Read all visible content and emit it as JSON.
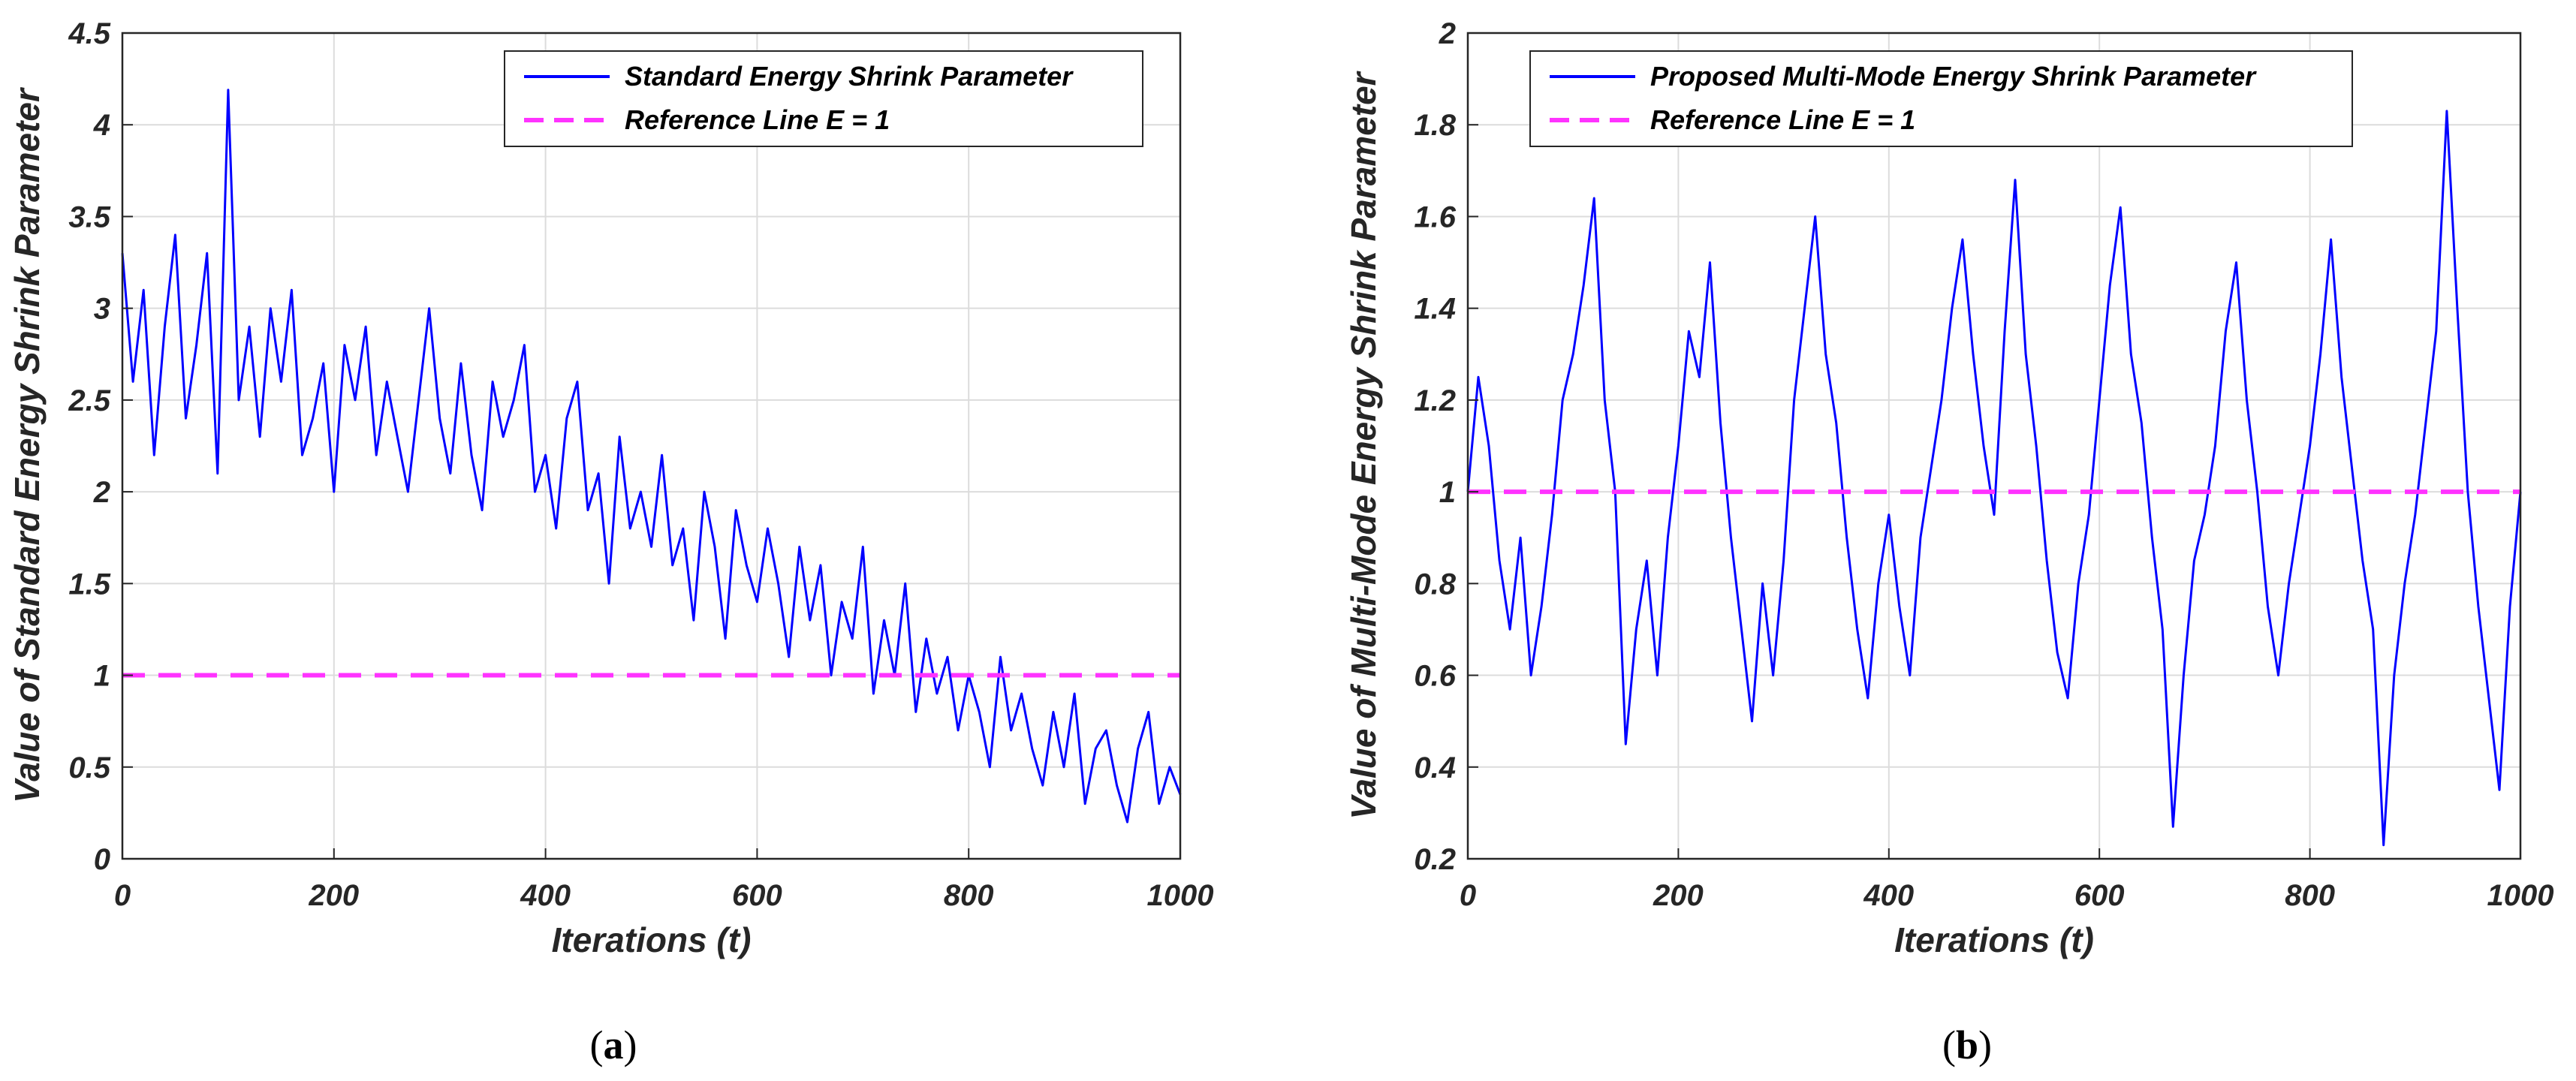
{
  "figure": {
    "colors": {
      "series": "#0000ff",
      "reference": "#ff33ff",
      "grid": "#dcdcdc",
      "axes": "#262626"
    }
  },
  "chart_data": [
    {
      "type": "line",
      "panel_label": "a",
      "caption_open": "(",
      "caption_close": ")",
      "title": "",
      "xlabel": "Iterations (t)",
      "ylabel": "Value of Standard Energy Shrink Parameter",
      "xlim": [
        0,
        1000
      ],
      "ylim": [
        0,
        4.5
      ],
      "xticks": [
        0,
        200,
        400,
        600,
        800,
        1000
      ],
      "xtick_labels": [
        "0",
        "200",
        "400",
        "600",
        "800",
        "1000"
      ],
      "yticks": [
        0,
        0.5,
        1,
        1.5,
        2,
        2.5,
        3,
        3.5,
        4,
        4.5
      ],
      "ytick_labels": [
        "0",
        "0.5",
        "1",
        "1.5",
        "2",
        "2.5",
        "3",
        "3.5",
        "4",
        "4.5"
      ],
      "grid": true,
      "legend_position": "top-right",
      "series": [
        {
          "name": "Standard Energy Shrink Parameter",
          "style": "solid",
          "color": "#0000ff",
          "x_step": 10,
          "values": [
            3.3,
            2.6,
            3.1,
            2.2,
            2.9,
            3.4,
            2.4,
            2.8,
            3.3,
            2.1,
            4.19,
            2.5,
            2.9,
            2.3,
            3.0,
            2.6,
            3.1,
            2.2,
            2.4,
            2.7,
            2.0,
            2.8,
            2.5,
            2.9,
            2.2,
            2.6,
            2.3,
            2.0,
            2.5,
            3.0,
            2.4,
            2.1,
            2.7,
            2.2,
            1.9,
            2.6,
            2.3,
            2.5,
            2.8,
            2.0,
            2.2,
            1.8,
            2.4,
            2.6,
            1.9,
            2.1,
            1.5,
            2.3,
            1.8,
            2.0,
            1.7,
            2.2,
            1.6,
            1.8,
            1.3,
            2.0,
            1.7,
            1.2,
            1.9,
            1.6,
            1.4,
            1.8,
            1.5,
            1.1,
            1.7,
            1.3,
            1.6,
            1.0,
            1.4,
            1.2,
            1.7,
            0.9,
            1.3,
            1.0,
            1.5,
            0.8,
            1.2,
            0.9,
            1.1,
            0.7,
            1.0,
            0.8,
            0.5,
            1.1,
            0.7,
            0.9,
            0.6,
            0.4,
            0.8,
            0.5,
            0.9,
            0.3,
            0.6,
            0.7,
            0.4,
            0.2,
            0.6,
            0.8,
            0.3,
            0.5,
            0.35
          ]
        },
        {
          "name": "Reference Line E = 1",
          "style": "dashed",
          "color": "#ff33ff",
          "x": [
            0,
            1000
          ],
          "values": [
            1,
            1
          ]
        }
      ]
    },
    {
      "type": "line",
      "panel_label": "b",
      "caption_open": "(",
      "caption_close": ")",
      "title": "",
      "xlabel": "Iterations (t)",
      "ylabel": "Value of Multi-Mode Energy Shrink Parameter",
      "xlim": [
        0,
        1000
      ],
      "ylim": [
        0.2,
        2
      ],
      "xticks": [
        0,
        200,
        400,
        600,
        800,
        1000
      ],
      "xtick_labels": [
        "0",
        "200",
        "400",
        "600",
        "800",
        "1000"
      ],
      "yticks": [
        0.2,
        0.4,
        0.6,
        0.8,
        1,
        1.2,
        1.4,
        1.6,
        1.8,
        2
      ],
      "ytick_labels": [
        "0.2",
        "0.4",
        "0.6",
        "0.8",
        "1",
        "1.2",
        "1.4",
        "1.6",
        "1.8",
        "2"
      ],
      "grid": true,
      "legend_position": "top-right",
      "series": [
        {
          "name": "Proposed Multi-Mode Energy Shrink Parameter",
          "style": "solid",
          "color": "#0000ff",
          "x_step": 10,
          "values": [
            1.0,
            1.25,
            1.1,
            0.85,
            0.7,
            0.9,
            0.6,
            0.75,
            0.95,
            1.2,
            1.3,
            1.45,
            1.64,
            1.2,
            1.0,
            0.45,
            0.7,
            0.85,
            0.6,
            0.9,
            1.1,
            1.35,
            1.25,
            1.5,
            1.15,
            0.9,
            0.7,
            0.5,
            0.8,
            0.6,
            0.85,
            1.2,
            1.4,
            1.6,
            1.3,
            1.15,
            0.9,
            0.7,
            0.55,
            0.8,
            0.95,
            0.75,
            0.6,
            0.9,
            1.05,
            1.2,
            1.4,
            1.55,
            1.3,
            1.1,
            0.95,
            1.35,
            1.68,
            1.3,
            1.1,
            0.85,
            0.65,
            0.55,
            0.8,
            0.95,
            1.2,
            1.45,
            1.62,
            1.3,
            1.15,
            0.9,
            0.7,
            0.27,
            0.6,
            0.85,
            0.95,
            1.1,
            1.35,
            1.5,
            1.2,
            1.0,
            0.75,
            0.6,
            0.8,
            0.95,
            1.1,
            1.3,
            1.55,
            1.25,
            1.05,
            0.85,
            0.7,
            0.23,
            0.6,
            0.8,
            0.95,
            1.15,
            1.35,
            1.83,
            1.4,
            1.0,
            0.75,
            0.55,
            0.35,
            0.75,
            1.0
          ]
        },
        {
          "name": "Reference Line E = 1",
          "style": "dashed",
          "color": "#ff33ff",
          "x": [
            0,
            1000
          ],
          "values": [
            1,
            1
          ]
        }
      ]
    }
  ]
}
